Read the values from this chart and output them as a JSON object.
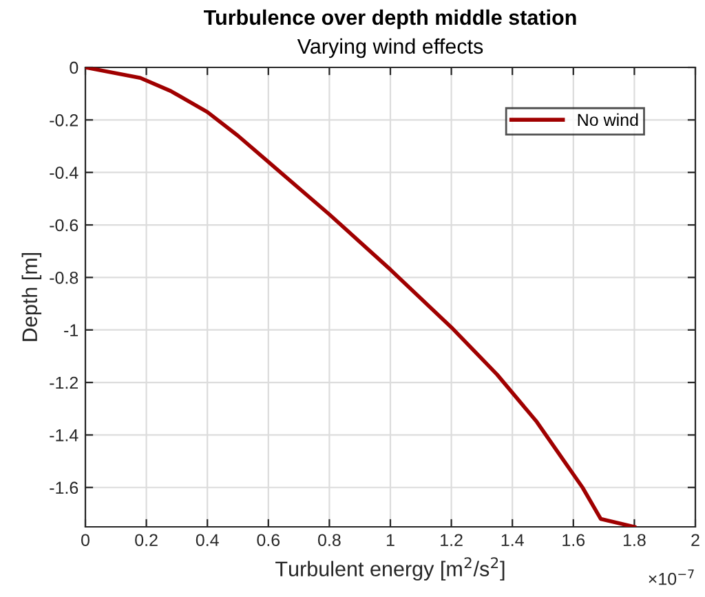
{
  "chart_data": {
    "type": "line",
    "title": "Turbulence over depth middle station",
    "subtitle": "Varying wind effects",
    "xlabel": "Turbulent energy [m$^{2}$/s$^{2}$]",
    "ylabel": "Depth [m]",
    "annotations": [
      "×10$^{−7}$"
    ],
    "series": [
      {
        "name": "No wind",
        "color": "#a00000",
        "x": [
          0,
          0.18,
          0.28,
          0.4,
          0.5,
          0.6,
          0.8,
          1.0,
          1.2,
          1.35,
          1.48,
          1.57,
          1.63,
          1.69,
          1.8
        ],
        "values": [
          0,
          -0.04,
          -0.09,
          -0.17,
          -0.26,
          -0.36,
          -0.56,
          -0.77,
          -0.99,
          -1.17,
          -1.35,
          -1.5,
          -1.6,
          -1.72,
          -1.75
        ]
      }
    ],
    "xlim": [
      0,
      2
    ],
    "ylim": [
      -1.75,
      0
    ],
    "xticks": [
      0,
      0.2,
      0.4,
      0.6,
      0.8,
      1,
      1.2,
      1.4,
      1.6,
      1.8,
      2
    ],
    "yticks": [
      -1.6,
      -1.4,
      -1.2,
      -1,
      -0.8,
      -0.6,
      -0.4,
      -0.2,
      0
    ],
    "grid": true,
    "legend": "top right",
    "marker": "none",
    "line_style": "solid"
  }
}
